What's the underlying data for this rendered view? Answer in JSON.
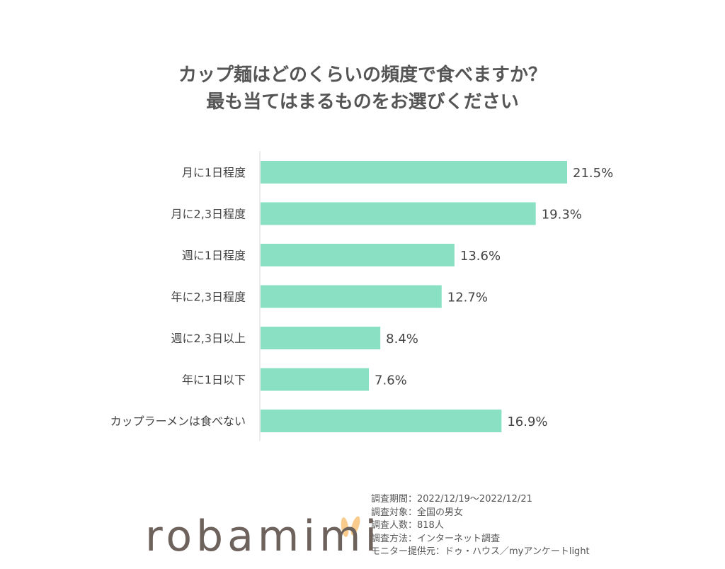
{
  "chart_data": {
    "type": "bar",
    "orientation": "horizontal",
    "title": [
      "カップ麺はどのくらいの頻度で食べますか？",
      "最も当てはまるものをお選びください"
    ],
    "categories": [
      "月に1日程度",
      "月に2,3日程度",
      "週に1日程度",
      "年に2,3日程度",
      "週に2,3日以上",
      "年に1日以下",
      "カップラーメンは食べない"
    ],
    "values": [
      21.5,
      19.3,
      13.6,
      12.7,
      8.4,
      7.6,
      16.9
    ],
    "value_labels": [
      "21.5%",
      "19.3%",
      "13.6%",
      "12.7%",
      "8.4%",
      "7.6%",
      "16.9%"
    ],
    "unit": "%",
    "grid": false,
    "bar_color": "#8ae0c2"
  },
  "notes": [
    "調査期間：2022/12/19～2022/12/21",
    "調査対象：全国の男女",
    "調査人数：818人",
    "調査方法：インターネット調査",
    "モニター提供元：ドゥ・ハウス／myアンケートlight"
  ],
  "logo": {
    "text": "robamimi",
    "ear_color": "#f9cc8e",
    "text_color": "#6e625d"
  }
}
